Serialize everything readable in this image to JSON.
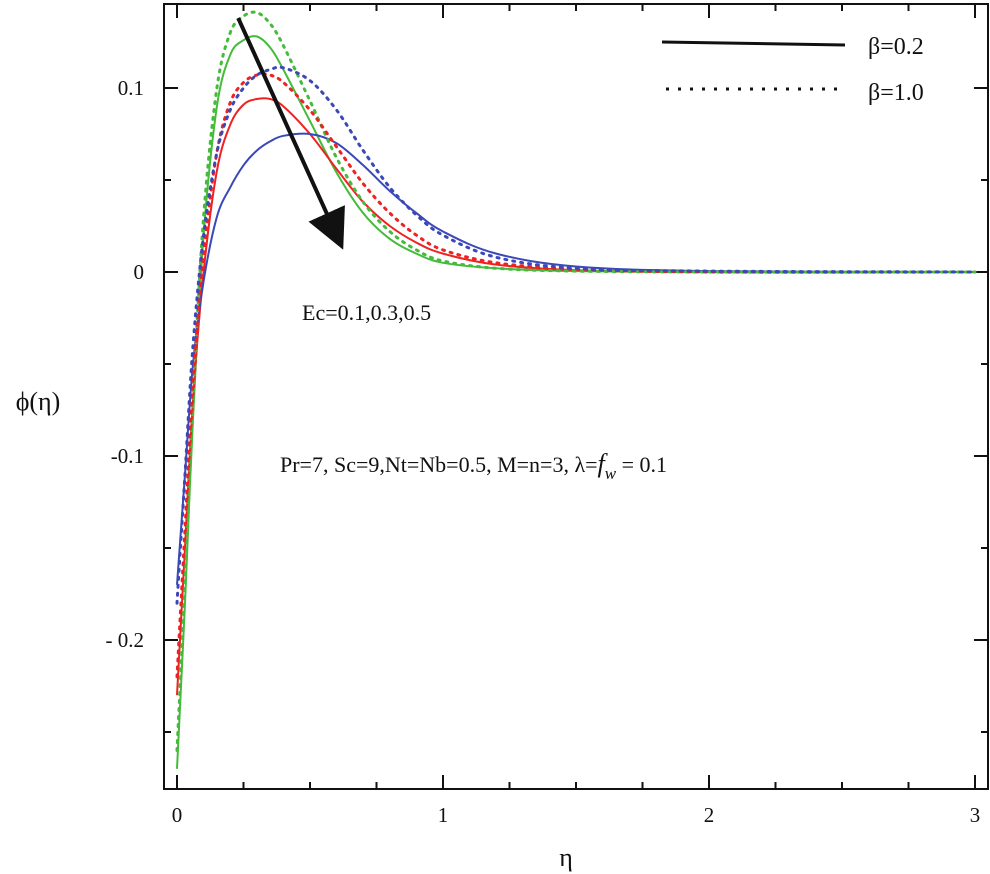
{
  "chart_data": {
    "type": "line",
    "title": "",
    "xlabel": "η",
    "ylabel": "ϕ(η)",
    "xlim": [
      0,
      3
    ],
    "ylim": [
      -0.27,
      0.145
    ],
    "x_ticks": [
      0,
      1,
      2,
      3
    ],
    "x_tick_labels": [
      "0",
      "1",
      "2",
      "3"
    ],
    "y_ticks": [
      -0.2,
      -0.1,
      0,
      0.1
    ],
    "y_tick_labels": [
      "- 0.2",
      "-0.1",
      "0",
      "0.1"
    ],
    "grid": false,
    "colors": {
      "green": "#44bb3a",
      "red": "#ee2222",
      "blue": "#3a48b8",
      "axis": "#111111"
    },
    "legend": {
      "placement": "top-right",
      "entries": [
        {
          "label": "β=0.2",
          "style": "solid"
        },
        {
          "label": "β=1.0",
          "style": "dotted"
        }
      ]
    },
    "annotations": {
      "arrow_label": "Ec=0.1,0.3,0.5",
      "params_text": "Pr=7, Sc=9,Nt=Nb=0.5, M=n=3, λ=",
      "params_f": "f",
      "params_sub": "w",
      "params_tail": " = 0.1",
      "arrow_from": [
        0.23,
        0.138
      ],
      "arrow_to": [
        0.6,
        0.02
      ]
    },
    "series": [
      {
        "name": "Ec=0.1, β=0.2",
        "color": "green",
        "style": "solid",
        "x": [
          0,
          0.03,
          0.06,
          0.1,
          0.15,
          0.2,
          0.25,
          0.3,
          0.35,
          0.4,
          0.5,
          0.6,
          0.7,
          0.8,
          0.9,
          1.0,
          1.2,
          1.5,
          2.0,
          3.0
        ],
        "y": [
          -0.27,
          -0.18,
          -0.08,
          0.02,
          0.09,
          0.118,
          0.126,
          0.128,
          0.122,
          0.11,
          0.082,
          0.054,
          0.032,
          0.018,
          0.01,
          0.005,
          0.002,
          0.0005,
          0,
          0
        ]
      },
      {
        "name": "Ec=0.3, β=0.2",
        "color": "red",
        "style": "solid",
        "x": [
          0,
          0.03,
          0.06,
          0.1,
          0.15,
          0.2,
          0.25,
          0.3,
          0.35,
          0.4,
          0.5,
          0.6,
          0.7,
          0.8,
          0.9,
          1.0,
          1.2,
          1.5,
          2.0,
          3.0
        ],
        "y": [
          -0.23,
          -0.15,
          -0.07,
          0.0,
          0.055,
          0.08,
          0.091,
          0.094,
          0.094,
          0.09,
          0.075,
          0.056,
          0.038,
          0.025,
          0.016,
          0.01,
          0.004,
          0.001,
          0,
          0
        ]
      },
      {
        "name": "Ec=0.5, β=0.2",
        "color": "blue",
        "style": "solid",
        "x": [
          0,
          0.03,
          0.06,
          0.1,
          0.15,
          0.2,
          0.25,
          0.3,
          0.35,
          0.4,
          0.5,
          0.6,
          0.7,
          0.8,
          0.9,
          1.0,
          1.2,
          1.5,
          2.0,
          3.0
        ],
        "y": [
          -0.17,
          -0.11,
          -0.05,
          -0.005,
          0.03,
          0.046,
          0.058,
          0.066,
          0.071,
          0.074,
          0.075,
          0.07,
          0.058,
          0.044,
          0.032,
          0.022,
          0.01,
          0.003,
          0.0005,
          0
        ]
      },
      {
        "name": "Ec=0.1, β=1.0",
        "color": "green",
        "style": "dotted",
        "x": [
          0,
          0.03,
          0.06,
          0.1,
          0.15,
          0.2,
          0.25,
          0.3,
          0.35,
          0.4,
          0.5,
          0.6,
          0.7,
          0.8,
          0.9,
          1.0,
          1.2,
          1.5,
          2.0,
          3.0
        ],
        "y": [
          -0.26,
          -0.17,
          -0.07,
          0.03,
          0.1,
          0.13,
          0.139,
          0.141,
          0.135,
          0.123,
          0.093,
          0.062,
          0.038,
          0.022,
          0.012,
          0.006,
          0.002,
          0.0005,
          0,
          0
        ]
      },
      {
        "name": "Ec=0.3, β=1.0",
        "color": "red",
        "style": "dotted",
        "x": [
          0,
          0.03,
          0.06,
          0.1,
          0.15,
          0.2,
          0.25,
          0.3,
          0.35,
          0.4,
          0.5,
          0.6,
          0.7,
          0.8,
          0.9,
          1.0,
          1.2,
          1.5,
          2.0,
          3.0
        ],
        "y": [
          -0.22,
          -0.14,
          -0.06,
          0.01,
          0.065,
          0.092,
          0.103,
          0.107,
          0.107,
          0.103,
          0.088,
          0.068,
          0.048,
          0.032,
          0.02,
          0.012,
          0.005,
          0.0015,
          0,
          0
        ]
      },
      {
        "name": "Ec=0.5, β=1.0",
        "color": "blue",
        "style": "dotted",
        "x": [
          0,
          0.03,
          0.06,
          0.1,
          0.15,
          0.2,
          0.25,
          0.3,
          0.35,
          0.4,
          0.5,
          0.6,
          0.7,
          0.8,
          0.9,
          1.0,
          1.2,
          1.5,
          2.0,
          3.0
        ],
        "y": [
          -0.18,
          -0.11,
          -0.04,
          0.02,
          0.065,
          0.088,
          0.1,
          0.107,
          0.11,
          0.111,
          0.104,
          0.088,
          0.066,
          0.046,
          0.031,
          0.02,
          0.008,
          0.002,
          0.0005,
          0
        ]
      }
    ]
  }
}
